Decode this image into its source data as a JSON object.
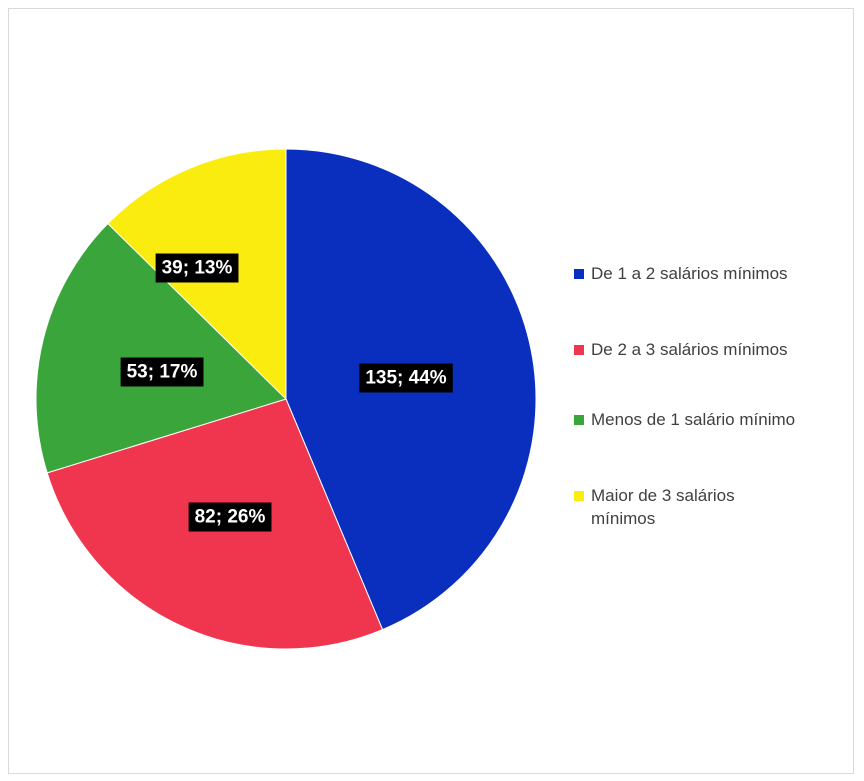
{
  "chart_data": {
    "type": "pie",
    "title": "",
    "slices": [
      {
        "label": "De 1 a 2 salários mínimos",
        "value": 135,
        "percent": 44,
        "data_label": "135; 44%",
        "color": "#0a2fbf"
      },
      {
        "label": "De 2 a 3 salários mínimos",
        "value": 82,
        "percent": 26,
        "data_label": "82; 26%",
        "color": "#f0364f"
      },
      {
        "label": "Menos de 1 salário mínimo",
        "value": 53,
        "percent": 17,
        "data_label": "53; 17%",
        "color": "#3aa53a"
      },
      {
        "label": "Maior de 3 salários mínimos",
        "value": 39,
        "percent": 13,
        "data_label": "39; 13%",
        "color": "#fbec0f"
      }
    ],
    "legend_position": "right",
    "data_label_style": "white text on black box"
  }
}
